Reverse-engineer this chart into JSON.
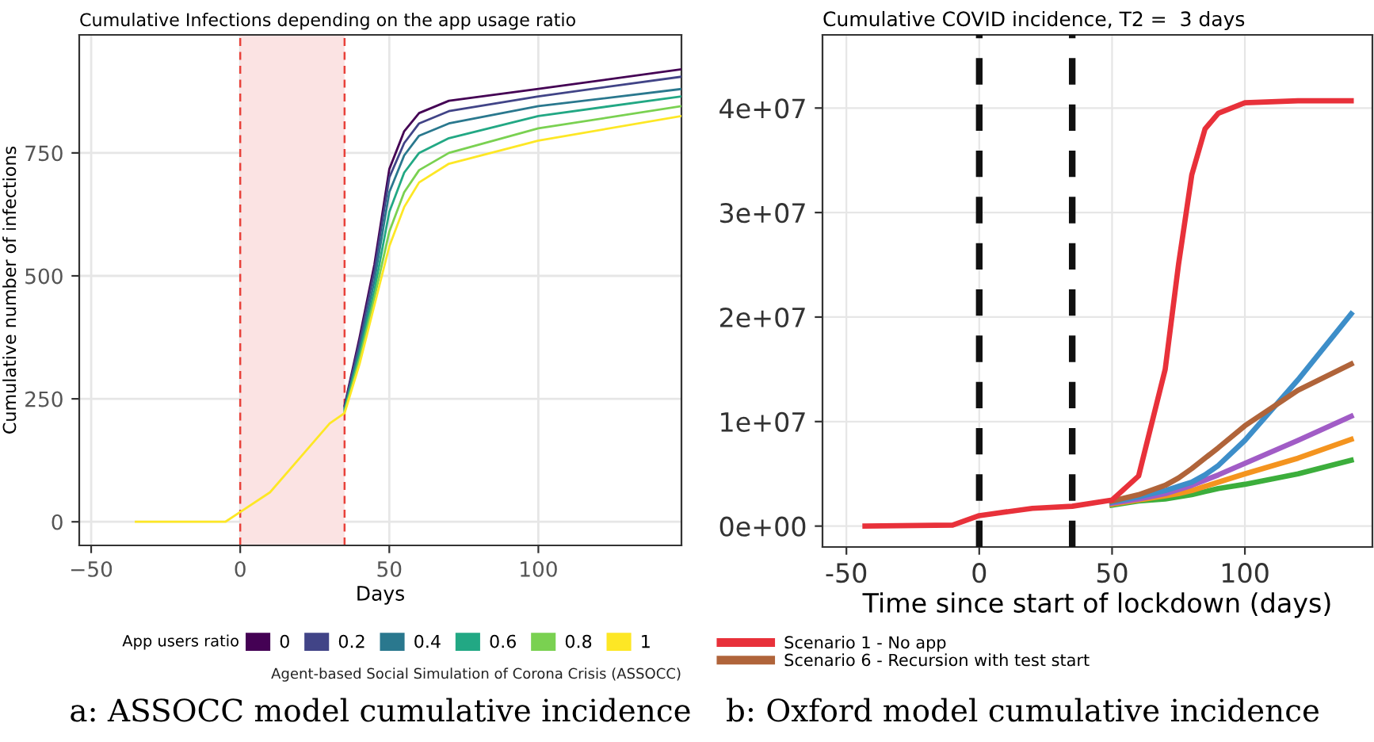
{
  "chart_data": [
    {
      "type": "line",
      "title": "Cumulative Infections depending on the app usage ratio",
      "xlabel": "Days",
      "ylabel": "Cumulative number of infections",
      "legend_title": "App users ratio",
      "annotations": [
        "Agent-based Social Simulation of Corona Crisis (ASSOCC)",
        "a: ASSOCC model cumulative incidence"
      ],
      "x": [
        -35,
        -5,
        0,
        10,
        20,
        30,
        35,
        40,
        45,
        50,
        55,
        60,
        70,
        100,
        148
      ],
      "series": [
        {
          "name": "0",
          "color": "#440154",
          "values": [
            null,
            null,
            null,
            null,
            null,
            null,
            236,
            374,
            523,
            717,
            794,
            831,
            856,
            880,
            920
          ]
        },
        {
          "name": "0.2",
          "color": "#414487",
          "values": [
            null,
            null,
            null,
            null,
            null,
            null,
            233,
            365,
            510,
            700,
            770,
            810,
            835,
            865,
            905
          ]
        },
        {
          "name": "0.4",
          "color": "#2a788e",
          "values": [
            null,
            null,
            null,
            null,
            null,
            null,
            230,
            350,
            490,
            670,
            745,
            785,
            810,
            845,
            880
          ]
        },
        {
          "name": "0.6",
          "color": "#22a884",
          "values": [
            null,
            null,
            null,
            null,
            null,
            null,
            227,
            340,
            470,
            630,
            710,
            750,
            780,
            825,
            865
          ]
        },
        {
          "name": "0.8",
          "color": "#7ad151",
          "values": [
            null,
            null,
            null,
            null,
            null,
            null,
            224,
            330,
            455,
            590,
            670,
            715,
            750,
            800,
            845
          ]
        },
        {
          "name": "1",
          "color": "#fde725",
          "values": [
            0,
            0,
            20,
            60,
            130,
            200,
            221,
            320,
            440,
            560,
            640,
            690,
            728,
            775,
            825
          ]
        }
      ],
      "xlim": [
        -54,
        148
      ],
      "ylim": [
        -48,
        990
      ],
      "xticks": [
        {
          "value": -50,
          "label": "−50"
        },
        0,
        50,
        100
      ],
      "yticks": [
        0,
        250,
        500,
        750
      ],
      "ref_lines": [
        {
          "axis": "x",
          "value": 0,
          "color": "#e8413a",
          "line_style": "dashed"
        },
        {
          "axis": "x",
          "value": 35,
          "color": "#e8413a",
          "line_style": "dashed"
        }
      ],
      "bands": [
        {
          "axis": "x",
          "from": 0,
          "to": 35,
          "color": "#fbe3e3"
        }
      ],
      "grid": true,
      "legend": "bottom",
      "line_style": "solid"
    },
    {
      "type": "line",
      "title": "Cumulative COVID incidence, T2 =  3 days",
      "xlabel": "Time since start of lockdown (days)",
      "annotations": [
        "b: Oxford model cumulative incidence"
      ],
      "x": [
        -43,
        -10,
        0,
        20,
        35,
        50,
        60,
        70,
        75,
        80,
        85,
        90,
        100,
        120,
        140
      ],
      "series": [
        {
          "name": "Scenario 1 - No app",
          "color": "#e8313a",
          "values": [
            0,
            100000,
            1000000,
            1700000,
            1900000,
            2500000,
            4800000,
            15000000,
            25000000,
            33600000,
            38000000,
            39500000,
            40500000,
            40700000,
            40700000
          ]
        },
        {
          "name": "Scenario 6 - Recursion with test start",
          "color": "#b0643a",
          "values": [
            null,
            null,
            null,
            null,
            null,
            2400000,
            3000000,
            3900000,
            4600000,
            5500000,
            6500000,
            7500000,
            9600000,
            13000000,
            15500000
          ]
        },
        {
          "color": "#3d8ec9",
          "values": [
            null,
            null,
            null,
            null,
            null,
            2300000,
            2800000,
            3400000,
            3800000,
            4200000,
            4900000,
            5800000,
            8200000,
            14000000,
            20300000
          ]
        },
        {
          "color": "#a15cc6",
          "values": [
            null,
            null,
            null,
            null,
            null,
            2200000,
            2600000,
            3100000,
            3500000,
            3900000,
            4400000,
            4900000,
            6000000,
            8200000,
            10500000
          ]
        },
        {
          "color": "#f4941f",
          "values": [
            null,
            null,
            null,
            null,
            null,
            2100000,
            2500000,
            2900000,
            3100000,
            3400000,
            3800000,
            4200000,
            5000000,
            6500000,
            8300000
          ]
        },
        {
          "color": "#3cae3c",
          "values": [
            null,
            null,
            null,
            null,
            null,
            2000000,
            2400000,
            2600000,
            2800000,
            3000000,
            3300000,
            3600000,
            4000000,
            5000000,
            6300000
          ]
        }
      ],
      "xlim": [
        -59,
        148
      ],
      "ylim": [
        -2000000,
        47000000
      ],
      "xticks": [
        -50,
        0,
        50,
        100
      ],
      "yticks": [
        {
          "value": 0,
          "label": "0e+00"
        },
        {
          "value": 10000000,
          "label": "1e+07"
        },
        {
          "value": 20000000,
          "label": "2e+07"
        },
        {
          "value": 30000000,
          "label": "3e+07"
        },
        {
          "value": 40000000,
          "label": "4e+07"
        }
      ],
      "ref_lines": [
        {
          "axis": "x",
          "value": 0,
          "color": "#111111",
          "line_style": "dashed"
        },
        {
          "axis": "x",
          "value": 35,
          "color": "#111111",
          "line_style": "dashed"
        }
      ],
      "grid": true,
      "legend": "bottom left",
      "line_style": "solid"
    }
  ]
}
